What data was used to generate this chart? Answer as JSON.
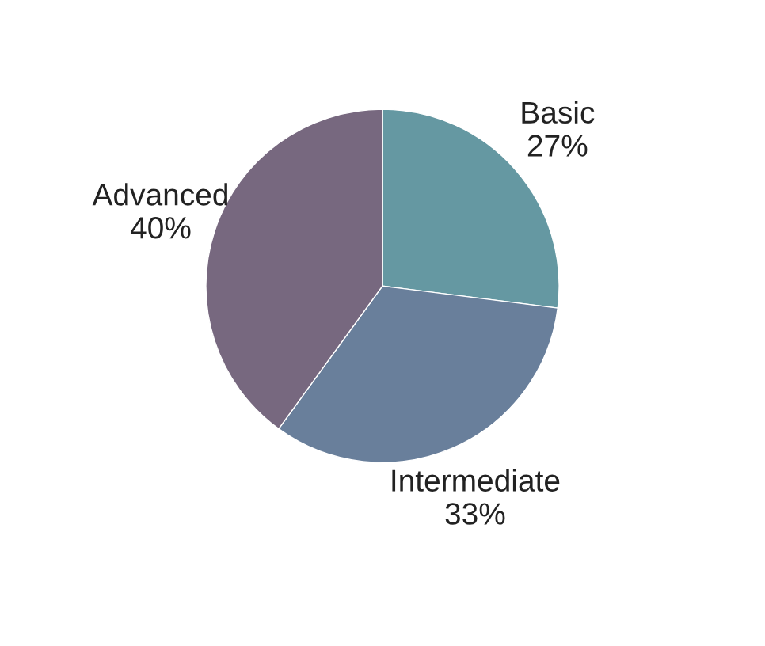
{
  "chart_data": {
    "type": "pie",
    "categories": [
      "Basic",
      "Intermediate",
      "Advanced"
    ],
    "values": [
      27,
      33,
      40
    ],
    "value_labels": [
      "27%",
      "33%",
      "40%"
    ],
    "colors": [
      "#6598a2",
      "#697f9b",
      "#77687f"
    ]
  }
}
